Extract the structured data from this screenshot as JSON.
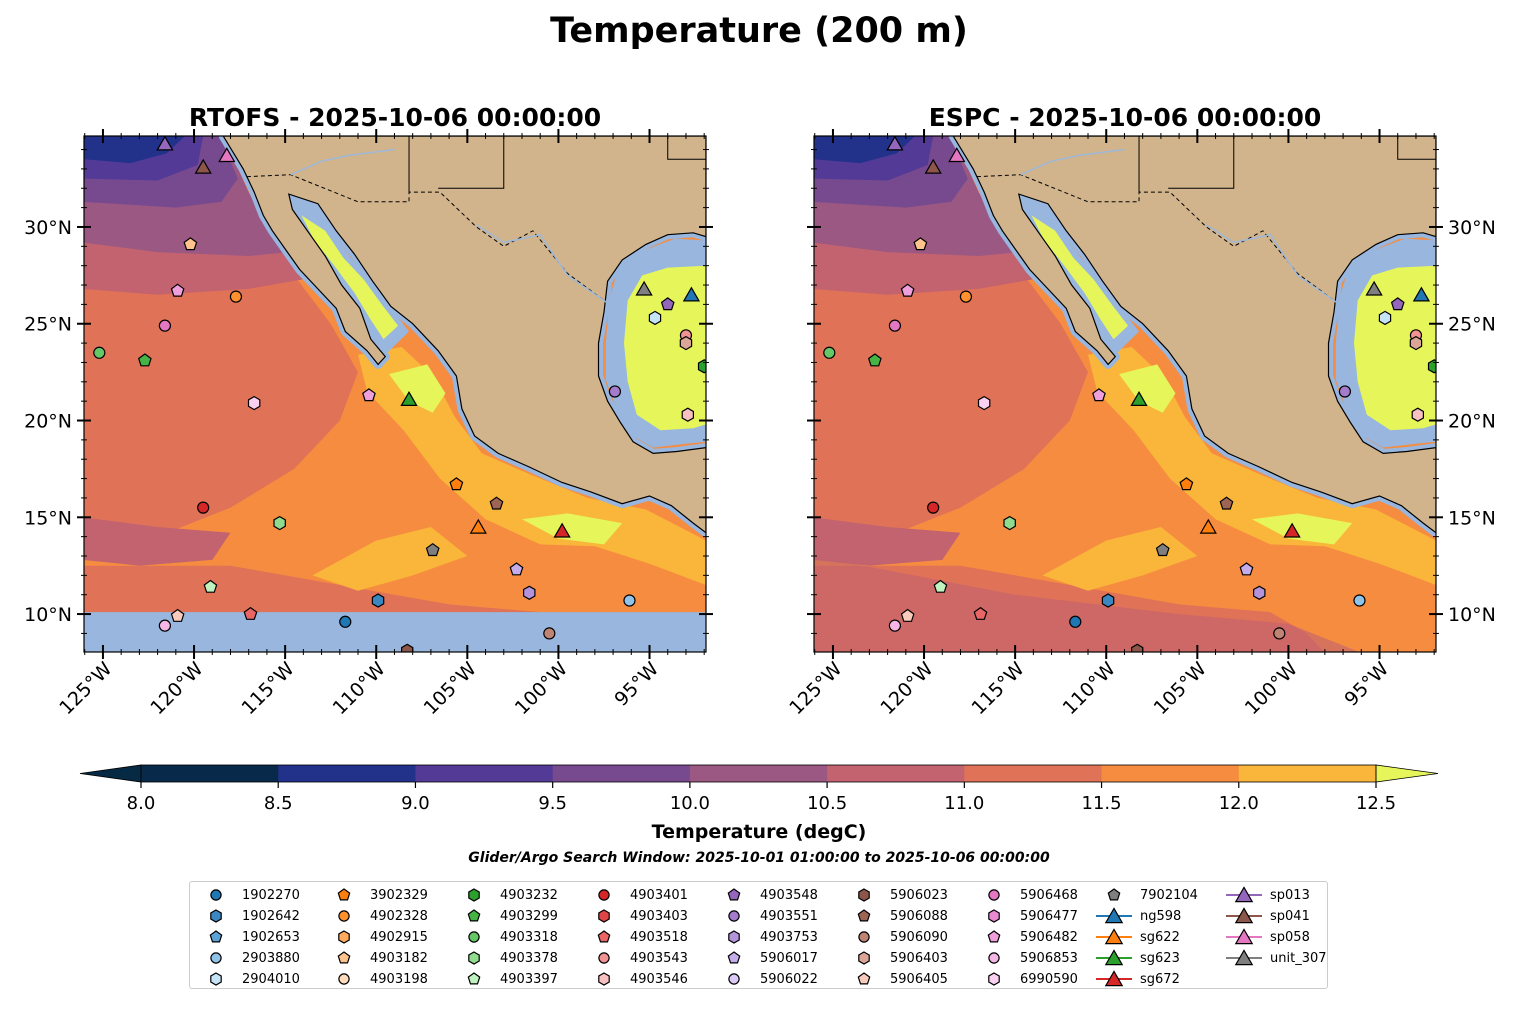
{
  "title": "Temperature (200 m)",
  "panels": [
    {
      "title": "RTOFS - 2025-10-06 00:00:00",
      "south_mask": true
    },
    {
      "title": "ESPC - 2025-10-06 00:00:00",
      "south_mask": false
    }
  ],
  "extent": {
    "lon": [
      -126.04,
      -91.9
    ],
    "lat": [
      8.04,
      34.7
    ]
  },
  "axes": {
    "lat_ticks": [
      {
        "value": 30,
        "label": "30°N"
      },
      {
        "value": 25,
        "label": "25°N"
      },
      {
        "value": 20,
        "label": "20°N"
      },
      {
        "value": 15,
        "label": "15°N"
      },
      {
        "value": 10,
        "label": "10°N"
      }
    ],
    "lon_ticks": [
      {
        "value": -125,
        "label": "125°W"
      },
      {
        "value": -120,
        "label": "120°W"
      },
      {
        "value": -115,
        "label": "115°W"
      },
      {
        "value": -110,
        "label": "110°W"
      },
      {
        "value": -105,
        "label": "105°W"
      },
      {
        "value": -100,
        "label": "100°W"
      },
      {
        "value": -95,
        "label": "95°W"
      }
    ]
  },
  "colorbar": {
    "label": "Temperature (degC)",
    "levels": [
      8.0,
      8.5,
      9.0,
      9.5,
      10.0,
      10.5,
      11.0,
      11.5,
      12.0,
      12.5
    ],
    "tick_labels": [
      "8.0",
      "8.5",
      "9.0",
      "9.5",
      "10.0",
      "10.5",
      "11.0",
      "11.5",
      "12.0",
      "12.5"
    ],
    "colors": [
      "#08294a",
      "#22318a",
      "#533a97",
      "#774a8f",
      "#9b5883",
      "#c2636f",
      "#e07257",
      "#f68c40",
      "#f9b63a"
    ],
    "under": "#072a44",
    "over": "#e6f65a"
  },
  "colors": {
    "land": "#d2b48c",
    "shelf": "#98b6de",
    "river": "#9db8d9"
  },
  "search_window": "Glider/Argo Search Window: 2025-10-01 01:00:00 to 2025-10-06 00:00:00",
  "legend": [
    {
      "label": "1902270",
      "shape": "circle",
      "color": "#1f77b4"
    },
    {
      "label": "1902642",
      "shape": "hexagon",
      "color": "#3a87c2"
    },
    {
      "label": "1902653",
      "shape": "pentagon",
      "color": "#5ba3d6"
    },
    {
      "label": "2903880",
      "shape": "circle",
      "color": "#8fc3ea"
    },
    {
      "label": "2904010",
      "shape": "hexagon",
      "color": "#c6e4f8"
    },
    {
      "label": "3902329",
      "shape": "pentagon",
      "color": "#ff7f0e"
    },
    {
      "label": "4902328",
      "shape": "circle",
      "color": "#ff922f"
    },
    {
      "label": "4902915",
      "shape": "hexagon",
      "color": "#ffaa5c"
    },
    {
      "label": "4903182",
      "shape": "pentagon",
      "color": "#ffc48e"
    },
    {
      "label": "4903198",
      "shape": "circle",
      "color": "#ffdcbc"
    },
    {
      "label": "4903232",
      "shape": "hexagon",
      "color": "#2ca02c"
    },
    {
      "label": "4903299",
      "shape": "pentagon",
      "color": "#45b445"
    },
    {
      "label": "4903318",
      "shape": "circle",
      "color": "#66c766"
    },
    {
      "label": "4903378",
      "shape": "hexagon",
      "color": "#8fdc8f"
    },
    {
      "label": "4903397",
      "shape": "pentagon",
      "color": "#c0f2c0"
    },
    {
      "label": "4903401",
      "shape": "circle",
      "color": "#d62728"
    },
    {
      "label": "4903403",
      "shape": "hexagon",
      "color": "#e04546"
    },
    {
      "label": "4903518",
      "shape": "pentagon",
      "color": "#e96566"
    },
    {
      "label": "4903543",
      "shape": "circle",
      "color": "#f29393"
    },
    {
      "label": "4903546",
      "shape": "hexagon",
      "color": "#f8c0c0"
    },
    {
      "label": "4903548",
      "shape": "pentagon",
      "color": "#9467bd"
    },
    {
      "label": "4903551",
      "shape": "circle",
      "color": "#a47ccb"
    },
    {
      "label": "4903753",
      "shape": "hexagon",
      "color": "#b393da"
    },
    {
      "label": "5906017",
      "shape": "pentagon",
      "color": "#c5acea"
    },
    {
      "label": "5906022",
      "shape": "circle",
      "color": "#dcc9f8"
    },
    {
      "label": "5906023",
      "shape": "hexagon",
      "color": "#8c564b"
    },
    {
      "label": "5906088",
      "shape": "pentagon",
      "color": "#9e6557"
    },
    {
      "label": "5906090",
      "shape": "circle",
      "color": "#c08474"
    },
    {
      "label": "5906403",
      "shape": "hexagon",
      "color": "#dba598"
    },
    {
      "label": "5906405",
      "shape": "pentagon",
      "color": "#f8cbbd"
    },
    {
      "label": "5906468",
      "shape": "circle",
      "color": "#e377c2"
    },
    {
      "label": "5906477",
      "shape": "hexagon",
      "color": "#e98bd0"
    },
    {
      "label": "5906482",
      "shape": "pentagon",
      "color": "#ef9fdb"
    },
    {
      "label": "5906853",
      "shape": "circle",
      "color": "#f5b6e6"
    },
    {
      "label": "6990590",
      "shape": "hexagon",
      "color": "#fbd0f0"
    },
    {
      "label": "7902104",
      "shape": "pentagon",
      "color": "#7f7f7f"
    },
    {
      "label": "ng598",
      "shape": "triangle",
      "color": "#1f77b4",
      "line": true
    },
    {
      "label": "sg622",
      "shape": "triangle",
      "color": "#ff7f0e",
      "line": true
    },
    {
      "label": "sg623",
      "shape": "triangle",
      "color": "#2ca02c",
      "line": true
    },
    {
      "label": "sg672",
      "shape": "triangle",
      "color": "#d62728",
      "line": true
    },
    {
      "label": "sp013",
      "shape": "triangle",
      "color": "#9467bd",
      "line": true
    },
    {
      "label": "sp041",
      "shape": "triangle",
      "color": "#8c564b",
      "line": true
    },
    {
      "label": "sp058",
      "shape": "triangle",
      "color": "#e377c2",
      "line": true
    },
    {
      "label": "unit_307",
      "shape": "triangle",
      "color": "#7f7f7f",
      "line": true
    }
  ],
  "observations": [
    {
      "id": "sp013",
      "lon": -121.6,
      "lat": 34.3
    },
    {
      "id": "sp041",
      "lon": -119.5,
      "lat": 33.1
    },
    {
      "id": "sp058",
      "lon": -118.2,
      "lat": 33.7
    },
    {
      "id": "4903182",
      "lon": -120.2,
      "lat": 29.1
    },
    {
      "id": "5906482",
      "lon": -120.9,
      "lat": 26.7
    },
    {
      "id": "4902328",
      "lon": -117.7,
      "lat": 26.4
    },
    {
      "id": "5906468",
      "lon": -121.6,
      "lat": 24.9
    },
    {
      "id": "4903318",
      "lon": -125.2,
      "lat": 23.5
    },
    {
      "id": "4903299",
      "lon": -122.7,
      "lat": 23.1
    },
    {
      "id": "6990590",
      "lon": -116.7,
      "lat": 20.9
    },
    {
      "id": "5906482",
      "lon": -110.4,
      "lat": 21.3
    },
    {
      "id": "sg623",
      "lon": -108.2,
      "lat": 21.1
    },
    {
      "id": "4903401",
      "lon": -119.5,
      "lat": 15.5
    },
    {
      "id": "4903378",
      "lon": -115.3,
      "lat": 14.7
    },
    {
      "id": "4903397",
      "lon": -119.1,
      "lat": 11.4
    },
    {
      "id": "5906405",
      "lon": -120.9,
      "lat": 9.9
    },
    {
      "id": "5906853",
      "lon": -121.6,
      "lat": 9.4
    },
    {
      "id": "4903518",
      "lon": -116.9,
      "lat": 10.0
    },
    {
      "id": "1902270",
      "lon": -111.7,
      "lat": 9.6
    },
    {
      "id": "1902642",
      "lon": -109.9,
      "lat": 10.7
    },
    {
      "id": "5906023",
      "lon": -108.3,
      "lat": 8.1
    },
    {
      "id": "5906090",
      "lon": -100.5,
      "lat": 9.0
    },
    {
      "id": "3902329",
      "lon": -105.6,
      "lat": 16.7
    },
    {
      "id": "5906088",
      "lon": -103.4,
      "lat": 15.7
    },
    {
      "id": "sg622",
      "lon": -104.4,
      "lat": 14.5
    },
    {
      "id": "7902104",
      "lon": -106.9,
      "lat": 13.3
    },
    {
      "id": "sg672",
      "lon": -99.8,
      "lat": 14.3
    },
    {
      "id": "5906017",
      "lon": -102.3,
      "lat": 12.3
    },
    {
      "id": "4903753",
      "lon": -101.6,
      "lat": 11.1
    },
    {
      "id": "2903880",
      "lon": -96.1,
      "lat": 10.7
    },
    {
      "id": "4903551",
      "lon": -96.9,
      "lat": 21.5
    },
    {
      "id": "unit_307",
      "lon": -95.3,
      "lat": 26.8
    },
    {
      "id": "ng598",
      "lon": -92.7,
      "lat": 26.5
    },
    {
      "id": "4903548",
      "lon": -94.0,
      "lat": 26.0
    },
    {
      "id": "2904010",
      "lon": -94.7,
      "lat": 25.3
    },
    {
      "id": "4903543",
      "lon": -93.0,
      "lat": 24.4
    },
    {
      "id": "5906403",
      "lon": -93.0,
      "lat": 24.0
    },
    {
      "id": "4903546",
      "lon": -92.9,
      "lat": 20.3
    },
    {
      "id": "4903232",
      "lon": -92.0,
      "lat": 22.8
    }
  ]
}
